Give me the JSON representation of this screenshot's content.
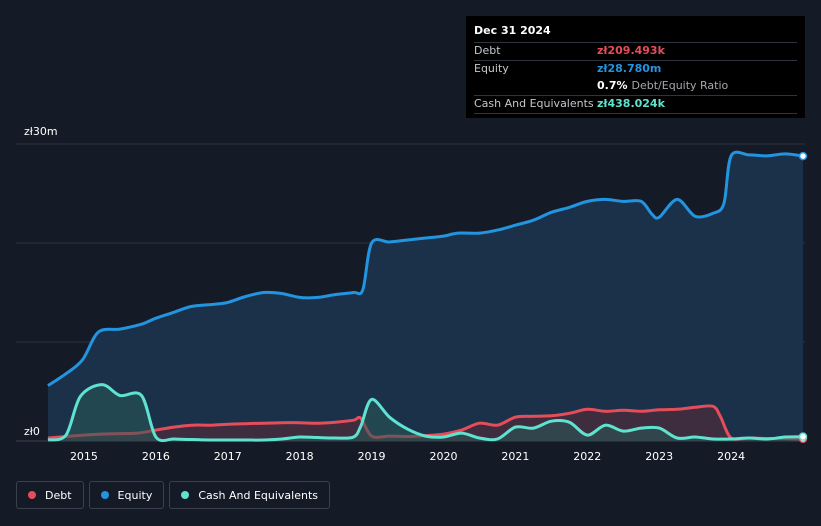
{
  "tooltip": {
    "date": "Dec 31 2024",
    "debt_label": "Debt",
    "debt_value": "zł209.493k",
    "equity_label": "Equity",
    "equity_value": "zł28.780m",
    "ratio_value": "0.7%",
    "ratio_label": "Debt/Equity Ratio",
    "cash_label": "Cash And Equivalents",
    "cash_value": "zł438.024k"
  },
  "legend": {
    "debt": "Debt",
    "equity": "Equity",
    "cash": "Cash And Equivalents"
  },
  "colors": {
    "debt": "#e64d5a",
    "equity": "#2394e0",
    "cash": "#5fe3cf",
    "background": "#151b26"
  },
  "chart_data": {
    "type": "area",
    "y_label_top": "zł30m",
    "y_label_bottom": "zł0",
    "ylim": [
      0,
      30
    ],
    "y_unit": "zł m",
    "x_ticks": [
      "2015",
      "2016",
      "2017",
      "2018",
      "2019",
      "2020",
      "2021",
      "2022",
      "2023",
      "2024"
    ],
    "grid": true,
    "series": [
      {
        "name": "Equity",
        "points": [
          [
            2014.5,
            5.6
          ],
          [
            2014.75,
            6.8
          ],
          [
            2014.98,
            8.2
          ],
          [
            2015.2,
            11.0
          ],
          [
            2015.5,
            11.3
          ],
          [
            2015.8,
            11.8
          ],
          [
            2016.0,
            12.4
          ],
          [
            2016.25,
            13.0
          ],
          [
            2016.5,
            13.6
          ],
          [
            2016.8,
            13.8
          ],
          [
            2017.0,
            14.0
          ],
          [
            2017.25,
            14.6
          ],
          [
            2017.5,
            15.0
          ],
          [
            2017.75,
            14.9
          ],
          [
            2018.0,
            14.5
          ],
          [
            2018.25,
            14.5
          ],
          [
            2018.5,
            14.8
          ],
          [
            2018.75,
            15.0
          ],
          [
            2018.88,
            15.3
          ],
          [
            2019.0,
            20.0
          ],
          [
            2019.25,
            20.1
          ],
          [
            2019.5,
            20.3
          ],
          [
            2019.75,
            20.5
          ],
          [
            2020.0,
            20.7
          ],
          [
            2020.2,
            21.0
          ],
          [
            2020.5,
            21.0
          ],
          [
            2020.75,
            21.3
          ],
          [
            2021.0,
            21.8
          ],
          [
            2021.25,
            22.3
          ],
          [
            2021.5,
            23.1
          ],
          [
            2021.75,
            23.6
          ],
          [
            2022.0,
            24.2
          ],
          [
            2022.25,
            24.4
          ],
          [
            2022.5,
            24.2
          ],
          [
            2022.75,
            24.2
          ],
          [
            2022.9,
            22.9
          ],
          [
            2023.0,
            22.6
          ],
          [
            2023.25,
            24.4
          ],
          [
            2023.5,
            22.7
          ],
          [
            2023.75,
            23.0
          ],
          [
            2023.9,
            24.0
          ],
          [
            2024.0,
            28.8
          ],
          [
            2024.25,
            28.9
          ],
          [
            2024.5,
            28.8
          ],
          [
            2024.75,
            29.0
          ],
          [
            2025.0,
            28.78
          ]
        ]
      },
      {
        "name": "Debt",
        "points": [
          [
            2014.5,
            0.3
          ],
          [
            2014.75,
            0.45
          ],
          [
            2015.0,
            0.6
          ],
          [
            2015.25,
            0.7
          ],
          [
            2015.5,
            0.75
          ],
          [
            2015.75,
            0.8
          ],
          [
            2016.0,
            1.1
          ],
          [
            2016.25,
            1.4
          ],
          [
            2016.5,
            1.6
          ],
          [
            2016.75,
            1.6
          ],
          [
            2017.0,
            1.7
          ],
          [
            2017.25,
            1.75
          ],
          [
            2017.5,
            1.8
          ],
          [
            2017.75,
            1.85
          ],
          [
            2018.0,
            1.85
          ],
          [
            2018.25,
            1.8
          ],
          [
            2018.5,
            1.9
          ],
          [
            2018.75,
            2.1
          ],
          [
            2018.85,
            2.3
          ],
          [
            2019.0,
            0.5
          ],
          [
            2019.25,
            0.5
          ],
          [
            2019.5,
            0.45
          ],
          [
            2019.75,
            0.55
          ],
          [
            2020.0,
            0.7
          ],
          [
            2020.25,
            1.1
          ],
          [
            2020.5,
            1.8
          ],
          [
            2020.75,
            1.6
          ],
          [
            2021.0,
            2.4
          ],
          [
            2021.25,
            2.5
          ],
          [
            2021.5,
            2.55
          ],
          [
            2021.75,
            2.8
          ],
          [
            2022.0,
            3.2
          ],
          [
            2022.25,
            3.0
          ],
          [
            2022.5,
            3.1
          ],
          [
            2022.75,
            3.0
          ],
          [
            2023.0,
            3.15
          ],
          [
            2023.25,
            3.2
          ],
          [
            2023.5,
            3.4
          ],
          [
            2023.75,
            3.5
          ],
          [
            2023.85,
            2.5
          ],
          [
            2024.0,
            0.3
          ],
          [
            2024.25,
            0.3
          ],
          [
            2024.5,
            0.25
          ],
          [
            2024.75,
            0.25
          ],
          [
            2025.0,
            0.209
          ]
        ]
      },
      {
        "name": "Cash And Equivalents",
        "points": [
          [
            2014.5,
            0.1
          ],
          [
            2014.75,
            0.6
          ],
          [
            2014.95,
            4.5
          ],
          [
            2015.25,
            5.7
          ],
          [
            2015.5,
            4.6
          ],
          [
            2015.8,
            4.6
          ],
          [
            2016.0,
            0.4
          ],
          [
            2016.25,
            0.2
          ],
          [
            2016.5,
            0.15
          ],
          [
            2016.75,
            0.1
          ],
          [
            2017.0,
            0.1
          ],
          [
            2017.25,
            0.1
          ],
          [
            2017.5,
            0.1
          ],
          [
            2017.75,
            0.2
          ],
          [
            2018.0,
            0.4
          ],
          [
            2018.25,
            0.35
          ],
          [
            2018.5,
            0.3
          ],
          [
            2018.75,
            0.4
          ],
          [
            2018.85,
            1.5
          ],
          [
            2019.0,
            4.2
          ],
          [
            2019.25,
            2.4
          ],
          [
            2019.5,
            1.2
          ],
          [
            2019.75,
            0.5
          ],
          [
            2020.0,
            0.4
          ],
          [
            2020.25,
            0.8
          ],
          [
            2020.5,
            0.3
          ],
          [
            2020.75,
            0.2
          ],
          [
            2021.0,
            1.4
          ],
          [
            2021.25,
            1.3
          ],
          [
            2021.5,
            2.0
          ],
          [
            2021.75,
            1.9
          ],
          [
            2022.0,
            0.6
          ],
          [
            2022.25,
            1.6
          ],
          [
            2022.5,
            1.0
          ],
          [
            2022.75,
            1.3
          ],
          [
            2023.0,
            1.3
          ],
          [
            2023.25,
            0.3
          ],
          [
            2023.5,
            0.4
          ],
          [
            2023.75,
            0.2
          ],
          [
            2024.0,
            0.2
          ],
          [
            2024.25,
            0.3
          ],
          [
            2024.5,
            0.2
          ],
          [
            2024.75,
            0.4
          ],
          [
            2025.0,
            0.438
          ]
        ]
      }
    ]
  }
}
